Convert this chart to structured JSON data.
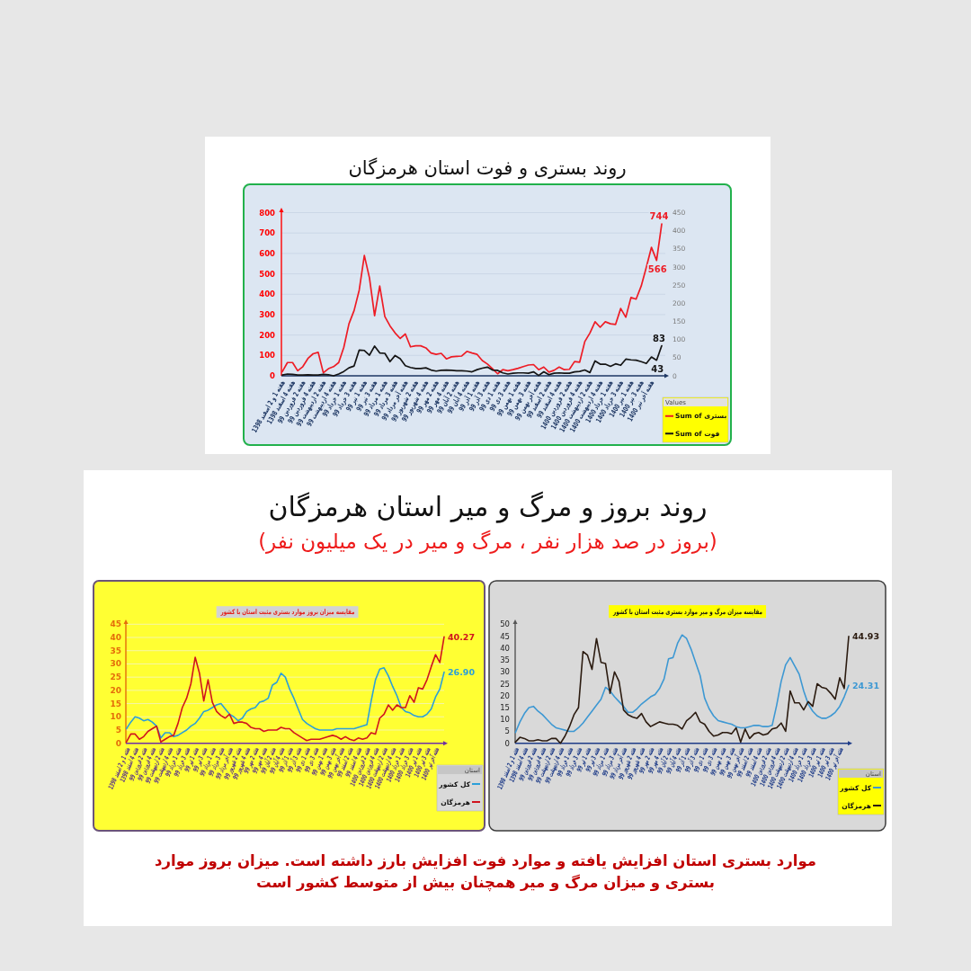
{
  "chart_data": [
    {
      "type": "line",
      "title": "روند بستری و فوت استان هرمزگان",
      "categories": [
        "هفته 1 و 2 اسفند 1398",
        null,
        "هفته 4 اسفند 1398",
        null,
        "هفته 2 فروردین 99",
        null,
        "هفته 4 فروردین 99",
        null,
        "هفته 2 اردیبهشت 99",
        null,
        "هفته 4 اردیبهشت 99",
        null,
        "هفته 1 خرداد 99",
        null,
        "هفته 3 خرداد 99",
        null,
        "هفته 1 تیر 99",
        null,
        "هفته 3 تیر 99",
        null,
        "هفته 1 مرداد 99",
        null,
        "هفته 3 مرداد 99",
        null,
        "هفته آخر مرداد 99",
        null,
        "هفته 2 شهریور 99",
        null,
        "هفته 4 شهریور 99",
        null,
        "هفته 2 مهر 99",
        null,
        "هفته 4 مهر 99",
        null,
        "هفته 2 آبان 99",
        null,
        "هفته 4 آبان 99",
        null,
        "هفته 1 آذر 99",
        null,
        "هفته 3 آذر 99",
        null,
        "هفته 1 دی 99",
        null,
        "هفته 3 دی 99",
        null,
        "هفته 1 بهمن 99",
        null,
        "هفته 3 بهمن 99",
        null,
        "هفته آخر بهمن 99",
        null,
        "هفته 2 اسفند 99",
        null,
        "هفته 4 اسفند 99",
        null,
        "هفته 2 فروردین 1400",
        null,
        "هفته 4 فروردین 1400",
        null,
        "هفته 2 اردیبهشت 1400",
        null,
        "هفته 4 اردیبهشت 1400",
        null,
        "هفته 1 خرداد 1400",
        null,
        "هفته 3 خرداد 1400",
        null,
        "هفته 1 تیر 1400",
        null,
        "هفته 3 تیر 1400",
        null,
        "هفته آخر تیر 1400",
        null,
        null
      ],
      "series": [
        {
          "name": "Sum of بستری",
          "color": "#ee1c25",
          "values": [
            20,
            65,
            65,
            25,
            45,
            85,
            108,
            115,
            15,
            35,
            45,
            65,
            140,
            255,
            320,
            420,
            590,
            480,
            295,
            440,
            290,
            245,
            210,
            183,
            205,
            142,
            147,
            147,
            137,
            112,
            105,
            110,
            83,
            93,
            95,
            97,
            120,
            112,
            105,
            75,
            58,
            35,
            10,
            30,
            25,
            30,
            37,
            45,
            53,
            55,
            30,
            43,
            18,
            27,
            43,
            30,
            32,
            70,
            67,
            168,
            210,
            265,
            238,
            265,
            255,
            252,
            330,
            287,
            384,
            376,
            440,
            532,
            630,
            566,
            744
          ],
          "value_labels": [
            null,
            null,
            null,
            null,
            null,
            null,
            null,
            null,
            null,
            null,
            null,
            null,
            null,
            null,
            null,
            null,
            null,
            null,
            null,
            null,
            null,
            null,
            null,
            null,
            null,
            null,
            null,
            null,
            null,
            null,
            null,
            null,
            null,
            null,
            null,
            null,
            null,
            null,
            null,
            null,
            null,
            null,
            null,
            null,
            null,
            null,
            null,
            null,
            null,
            null,
            null,
            null,
            null,
            null,
            null,
            null,
            null,
            null,
            null,
            null,
            null,
            null,
            null,
            null,
            null,
            null,
            null,
            null,
            null,
            null,
            null,
            null,
            null,
            "566",
            "744"
          ]
        },
        {
          "name": "Sum of فوت",
          "color": "#141414",
          "axis": "y2",
          "values": [
            2,
            5,
            4,
            2,
            2,
            3,
            2,
            2,
            4,
            3,
            0,
            5,
            12,
            22,
            27,
            71,
            70,
            57,
            82,
            63,
            62,
            39,
            56,
            47,
            28,
            23,
            20,
            20,
            22,
            16,
            13,
            15,
            16,
            15,
            14,
            14,
            13,
            11,
            17,
            21,
            24,
            16,
            15,
            8,
            5,
            7,
            8,
            8,
            7,
            11,
            1,
            11,
            3,
            7,
            8,
            7,
            7,
            11,
            12,
            16,
            9,
            41,
            32,
            32,
            26,
            33,
            29,
            46,
            44,
            43,
            39,
            34,
            52,
            43,
            83
          ],
          "value_labels": [
            null,
            null,
            null,
            null,
            null,
            null,
            null,
            null,
            null,
            null,
            null,
            null,
            null,
            null,
            null,
            null,
            null,
            null,
            null,
            null,
            null,
            null,
            null,
            null,
            null,
            null,
            null,
            null,
            null,
            null,
            null,
            null,
            null,
            null,
            null,
            null,
            null,
            null,
            null,
            null,
            null,
            null,
            null,
            null,
            null,
            null,
            null,
            null,
            null,
            null,
            null,
            null,
            null,
            null,
            null,
            null,
            null,
            null,
            null,
            null,
            null,
            null,
            null,
            null,
            null,
            null,
            null,
            null,
            null,
            null,
            null,
            null,
            null,
            "43",
            "83"
          ]
        }
      ],
      "ylim": [
        0,
        800
      ],
      "yticks": [
        0,
        100,
        200,
        300,
        400,
        500,
        600,
        700,
        800
      ],
      "y2lim": [
        0,
        450
      ],
      "y2ticks": [
        0,
        50,
        100,
        150,
        200,
        250,
        300,
        350,
        400,
        450
      ],
      "grid": "y",
      "legend": "bottom right",
      "legend_title": "Values"
    },
    {
      "type": "other",
      "title": "روند بروز و مرگ و میر استان هرمزگان",
      "subtitle": "(بروز در صد هزار نفر ، مرگ و میر در یک میلیون نفر)"
    },
    {
      "type": "line",
      "title": "مقایسه میزان بروز موارد بستری مثبت استان با کشور",
      "categories": [
        "هفته 1 و 2 اسفند 1398",
        null,
        "هفته 4 اسفند 1398",
        null,
        "هفته 2 فروردین 99",
        null,
        "هفته 4 فروردین 99",
        null,
        "هفته 2 اردیبهشت 99",
        null,
        "هفته 4 اردیبهشت 99",
        null,
        "هفته 1 خرداد 99",
        null,
        "هفته 3 خرداد 99",
        null,
        "هفته 1 تیر 99",
        null,
        "هفته 3 تیر 99",
        null,
        "هفته 1 مرداد 99",
        null,
        "هفته 3 مرداد 99",
        null,
        "هفته آخر مرداد 99",
        null,
        "هفته 2 شهریور 99",
        null,
        "هفته 4 شهریور 99",
        null,
        "هفته 2 مهر 99",
        null,
        "هفته 4 مهر 99",
        null,
        "هفته 2 آبان 99",
        null,
        "هفته 4 آبان 99",
        null,
        "هفته 1 آذر 99",
        null,
        "هفته 3 آذر 99",
        null,
        "هفته 1 دی 99",
        null,
        "هفته 3 دی 99",
        null,
        "هفته 1 بهمن 99",
        null,
        "هفته 3 بهمن 99",
        null,
        "هفته آخر بهمن 99",
        null,
        "هفته 2 اسفند 99",
        null,
        "هفته 4 اسفند 99",
        null,
        "هفته 2 فروردین 1400",
        null,
        "هفته 4 فروردین 1400",
        null,
        "هفته 2 اردیبهشت 1400",
        null,
        "هفته 4 اردیبهشت 1400",
        null,
        "هفته 1 خرداد 1400",
        null,
        "هفته 3 خرداد 1400",
        null,
        "هفته 1 تیر 1400",
        null,
        "هفته 3 تیر 1400",
        null,
        "هفته آخر تیر 1400",
        null,
        null
      ],
      "series": [
        {
          "name": "کل کشور",
          "color": "#2b9fd9",
          "values": [
            5.5,
            8,
            10,
            9.5,
            8.5,
            9,
            8,
            6.5,
            2,
            4,
            4,
            2.5,
            3,
            4,
            5,
            6.5,
            7.5,
            9.5,
            12,
            12.5,
            13.5,
            14.5,
            15,
            13,
            11,
            10,
            8.5,
            9.5,
            12,
            13,
            13.5,
            15.5,
            16,
            17,
            22,
            23,
            26.5,
            25,
            20.5,
            17,
            13,
            9,
            7.5,
            6.5,
            5.5,
            5,
            5,
            5,
            5,
            5.5,
            5.5,
            5.5,
            5.5,
            5.5,
            6,
            6.5,
            7,
            16,
            24,
            28,
            28.5,
            25.5,
            21.5,
            18,
            13.5,
            12,
            11.5,
            10.5,
            10,
            10,
            11,
            13,
            17.5,
            20.5,
            26.9
          ],
          "value_labels": [
            null,
            null,
            null,
            null,
            null,
            null,
            null,
            null,
            null,
            null,
            null,
            null,
            null,
            null,
            null,
            null,
            null,
            null,
            null,
            null,
            null,
            null,
            null,
            null,
            null,
            null,
            null,
            null,
            null,
            null,
            null,
            null,
            null,
            null,
            null,
            null,
            null,
            null,
            null,
            null,
            null,
            null,
            null,
            null,
            null,
            null,
            null,
            null,
            null,
            null,
            null,
            null,
            null,
            null,
            null,
            null,
            null,
            null,
            null,
            null,
            null,
            null,
            null,
            null,
            null,
            null,
            null,
            null,
            null,
            null,
            null,
            null,
            null,
            null,
            "26.90"
          ]
        },
        {
          "name": "هرمزگان",
          "color": "#d0141e",
          "values": [
            0.5,
            3.5,
            3.5,
            1.5,
            2.5,
            4.5,
            5.5,
            6.5,
            0.5,
            1.5,
            2.5,
            3,
            7.5,
            13.5,
            17,
            22.5,
            32.5,
            26.5,
            16,
            24,
            15.5,
            12,
            10.5,
            9.5,
            11,
            7.5,
            8,
            8,
            7.5,
            6,
            5.5,
            5.5,
            4.5,
            5,
            5,
            5,
            6,
            5.5,
            5.5,
            4,
            3,
            2,
            1,
            1.5,
            1.5,
            1.5,
            2,
            2.5,
            3,
            2.5,
            1.5,
            2.5,
            1.5,
            1,
            2,
            1.5,
            2,
            4,
            3.5,
            9.5,
            11,
            14.5,
            12.5,
            14.5,
            13.5,
            13.5,
            18,
            15.5,
            21,
            20.5,
            24,
            29,
            33.5,
            30.5,
            40.27
          ],
          "value_labels": [
            null,
            null,
            null,
            null,
            null,
            null,
            null,
            null,
            null,
            null,
            null,
            null,
            null,
            null,
            null,
            null,
            null,
            null,
            null,
            null,
            null,
            null,
            null,
            null,
            null,
            null,
            null,
            null,
            null,
            null,
            null,
            null,
            null,
            null,
            null,
            null,
            null,
            null,
            null,
            null,
            null,
            null,
            null,
            null,
            null,
            null,
            null,
            null,
            null,
            null,
            null,
            null,
            null,
            null,
            null,
            null,
            null,
            null,
            null,
            null,
            null,
            null,
            null,
            null,
            null,
            null,
            null,
            null,
            null,
            null,
            null,
            null,
            null,
            null,
            "40.27"
          ]
        }
      ],
      "ylim": [
        0,
        45
      ],
      "yticks": [
        0,
        5,
        10,
        15,
        20,
        25,
        30,
        35,
        40,
        45
      ],
      "grid": "y",
      "legend": "bottom right",
      "legend_title": "استان"
    },
    {
      "type": "line",
      "title": "مقایسه میزان مرگ و میر موارد بستری مثبت استان با کشور",
      "categories": [
        "هفته 1 و 2 اسفند 1398",
        null,
        "هفته 4 اسفند 1398",
        null,
        "هفته 2 فروردین 99",
        null,
        "هفته 4 فروردین 99",
        null,
        "هفته 2 اردیبهشت 99",
        null,
        "هفته 4 اردیبهشت 99",
        null,
        "هفته 1 خرداد 99",
        null,
        "هفته 3 خرداد 99",
        null,
        "هفته 1 تیر 99",
        null,
        "هفته 3 تیر 99",
        null,
        "هفته 1 مرداد 99",
        null,
        "هفته 3 مرداد 99",
        null,
        "هفته آخر مرداد 99",
        null,
        "هفته 2 شهریور 99",
        null,
        "هفته 4 شهریور 99",
        null,
        "هفته 2 مهر 99",
        null,
        "هفته 4 مهر 99",
        null,
        "هفته 2 آبان 99",
        null,
        "هفته 4 آبان 99",
        null,
        "هفته 1 آذر 99",
        null,
        "هفته 3 آذر 99",
        null,
        "هفته 1 دی 99",
        null,
        "هفته 3 دی 99",
        null,
        "هفته 1 بهمن 99",
        null,
        "هفته 3 بهمن 99",
        null,
        "هفته آخر بهمن 99",
        null,
        "هفته 2 اسفند 99",
        null,
        "هفته 4 اسفند 99",
        null,
        "هفته 2 فروردین 1400",
        null,
        "هفته 4 فروردین 1400",
        null,
        "هفته 2 اردیبهشت 1400",
        null,
        "هفته 4 اردیبهشت 1400",
        null,
        "هفته 1 خرداد 1400",
        null,
        "هفته 3 خرداد 1400",
        null,
        "هفته 1 تیر 1400",
        null,
        "هفته 3 تیر 1400",
        null,
        "هفته آخر تیر 1400",
        null,
        null
      ],
      "series": [
        {
          "name": "کل کشور",
          "color": "#3d98d3",
          "values": [
            4.5,
            9,
            12.5,
            15,
            15.5,
            13.5,
            12,
            10,
            8,
            6.5,
            6,
            5.5,
            5,
            5,
            6.5,
            8.5,
            11,
            13.5,
            16,
            18.5,
            23.5,
            22,
            19.5,
            17.5,
            15.5,
            13,
            13,
            14.5,
            16.5,
            18,
            19.5,
            20.5,
            23,
            27,
            35.5,
            36,
            42,
            45.5,
            44,
            39.5,
            34,
            28.5,
            19,
            14.5,
            11.5,
            9.5,
            9,
            8.5,
            8,
            7,
            6.5,
            6.5,
            7,
            7.5,
            7.5,
            7,
            7,
            7.5,
            16,
            26,
            33,
            36,
            32.5,
            29,
            22,
            16.5,
            13.5,
            11.5,
            10.5,
            10.5,
            11.5,
            13,
            15.5,
            19.5,
            24.31
          ],
          "value_labels": [
            null,
            null,
            null,
            null,
            null,
            null,
            null,
            null,
            null,
            null,
            null,
            null,
            null,
            null,
            null,
            null,
            null,
            null,
            null,
            null,
            null,
            null,
            null,
            null,
            null,
            null,
            null,
            null,
            null,
            null,
            null,
            null,
            null,
            null,
            null,
            null,
            null,
            null,
            null,
            null,
            null,
            null,
            null,
            null,
            null,
            null,
            null,
            null,
            null,
            null,
            null,
            null,
            null,
            null,
            null,
            null,
            null,
            null,
            null,
            null,
            null,
            null,
            null,
            null,
            null,
            null,
            null,
            null,
            null,
            null,
            null,
            null,
            null,
            null,
            "24.31"
          ]
        },
        {
          "name": "هرمزگان",
          "color": "#2b1b10",
          "values": [
            0.5,
            2.5,
            2,
            1,
            1,
            1.5,
            1,
            1,
            2,
            2,
            0,
            3,
            7,
            12,
            15,
            38.5,
            37,
            31,
            44,
            34,
            33.5,
            21,
            30,
            26,
            14,
            12,
            11,
            10.5,
            12.5,
            9,
            7,
            8,
            9,
            8.5,
            8,
            8,
            7.5,
            6,
            9.5,
            11,
            13,
            9,
            8,
            5,
            3,
            3.5,
            4.5,
            4.5,
            4,
            6.5,
            0.5,
            6,
            2,
            4,
            4.5,
            3.5,
            4,
            6,
            6.5,
            8.5,
            5,
            22,
            17,
            17,
            14,
            17.5,
            15.5,
            25,
            23.5,
            23,
            21,
            18.5,
            27.5,
            23,
            44.93
          ],
          "value_labels": [
            null,
            null,
            null,
            null,
            null,
            null,
            null,
            null,
            null,
            null,
            null,
            null,
            null,
            null,
            null,
            null,
            null,
            null,
            null,
            null,
            null,
            null,
            null,
            null,
            null,
            null,
            null,
            null,
            null,
            null,
            null,
            null,
            null,
            null,
            null,
            null,
            null,
            null,
            null,
            null,
            null,
            null,
            null,
            null,
            null,
            null,
            null,
            null,
            null,
            null,
            null,
            null,
            null,
            null,
            null,
            null,
            null,
            null,
            null,
            null,
            null,
            null,
            null,
            null,
            null,
            null,
            null,
            null,
            null,
            null,
            null,
            null,
            null,
            null,
            "44.93"
          ]
        }
      ],
      "ylim": [
        0,
        50
      ],
      "yticks": [
        0,
        5,
        10,
        15,
        20,
        25,
        30,
        35,
        40,
        45,
        50
      ],
      "legend": "bottom right",
      "legend_title": "استان"
    },
    {
      "type": "other",
      "annotations": [
        "موارد بستری استان افزایش یافته و موارد فوت افزایش بارز داشته است. میزان بروز موارد بستری و میزان مرگ و میر همچنان بیش از متوسط کشور است"
      ]
    }
  ]
}
